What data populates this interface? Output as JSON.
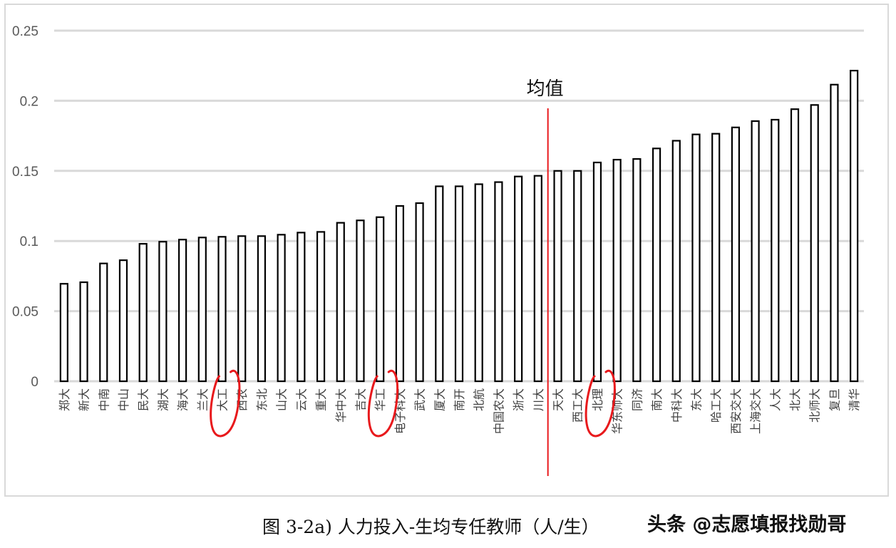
{
  "chart_data": {
    "type": "bar",
    "title": "",
    "xlabel": "",
    "ylabel": "",
    "ylim": [
      0,
      0.25
    ],
    "yticks": [
      "0",
      "0.05",
      "0.1",
      "0.15",
      "0.2",
      "0.25"
    ],
    "grid": true,
    "legend": null,
    "categories": [
      "郑大",
      "新大",
      "中南",
      "中山",
      "民大",
      "湖大",
      "海大",
      "兰大",
      "大工",
      "西农",
      "东北",
      "山大",
      "云大",
      "重大",
      "华中大",
      "吉大",
      "华工",
      "电子科大",
      "武大",
      "厦大",
      "南开",
      "北航",
      "中国农大",
      "浙大",
      "川大",
      "天大",
      "西工大",
      "北理",
      "华东师大",
      "同济",
      "南大",
      "中科大",
      "东大",
      "哈工大",
      "西安交大",
      "上海交大",
      "人大",
      "北大",
      "北师大",
      "复旦",
      "清华"
    ],
    "values": [
      0.0695,
      0.0706,
      0.084,
      0.0863,
      0.098,
      0.0995,
      0.101,
      0.1025,
      0.103,
      0.1035,
      0.1035,
      0.1045,
      0.106,
      0.1065,
      0.113,
      0.1147,
      0.117,
      0.125,
      0.127,
      0.139,
      0.139,
      0.1405,
      0.142,
      0.146,
      0.1465,
      0.15,
      0.15,
      0.156,
      0.158,
      0.1585,
      0.166,
      0.1715,
      0.176,
      0.1765,
      0.181,
      0.1855,
      0.1865,
      0.194,
      0.197,
      0.2115,
      0.2215
    ],
    "annotations": {
      "mean_line": {
        "label": "均值",
        "between": [
          "川大",
          "天大"
        ],
        "color": "#e8191c"
      },
      "circled": [
        "大工",
        "华工",
        "北理"
      ]
    }
  },
  "caption": "图 3-2a)  人力投入-生均专任教师（人/生）",
  "watermark": "头条 @志愿填报找勋哥",
  "colors": {
    "bar_fill": "#ffffff",
    "bar_stroke": "#000000",
    "grid": "#d9d9d9",
    "mean_line": "#e8191c",
    "circle": "#e8191c"
  }
}
